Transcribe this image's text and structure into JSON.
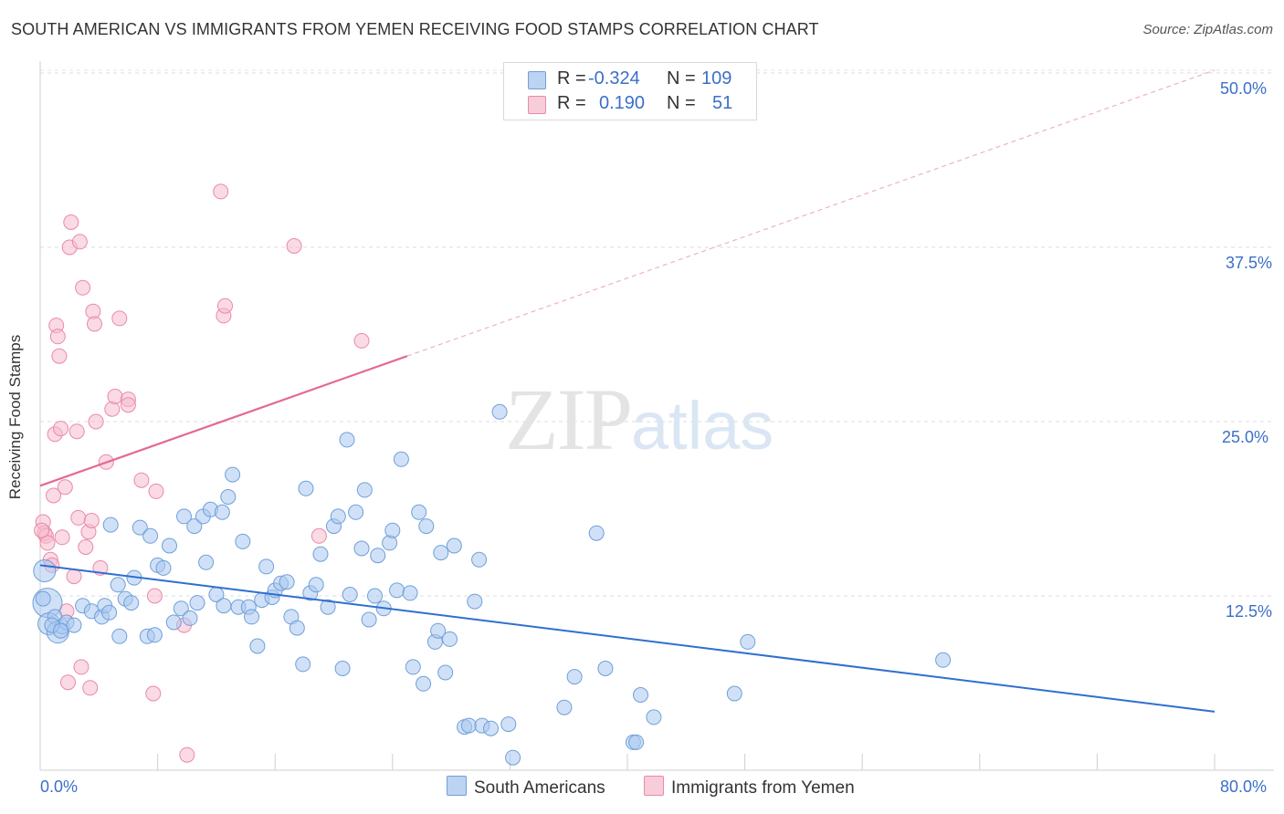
{
  "title": "SOUTH AMERICAN VS IMMIGRANTS FROM YEMEN RECEIVING FOOD STAMPS CORRELATION CHART",
  "source": "Source: ZipAtlas.com",
  "watermark": {
    "zip": "ZIP",
    "atlas": "atlas"
  },
  "legend_top": {
    "rows": [
      {
        "r_label": "R =",
        "r_value": "-0.324",
        "n_label": "N =",
        "n_value": "109"
      },
      {
        "r_label": "R =",
        "r_value": "0.190",
        "n_label": "N =",
        "n_value": "51"
      }
    ]
  },
  "legend_bottom": [
    "South Americans",
    "Immigrants from Yemen"
  ],
  "axis": {
    "ylabel": "Receiving Food Stamps",
    "x_min_label": "0.0%",
    "x_max_label": "80.0%",
    "y_ticks": [
      "12.5%",
      "25.0%",
      "37.5%",
      "50.0%"
    ]
  },
  "colors": {
    "blue_fill": "#a9c8f0",
    "blue_stroke": "#6f9fd8",
    "blue_line": "#2f6fd0",
    "pink_fill": "#f6bccd",
    "pink_stroke": "#e98aa8",
    "pink_line": "#e46a93",
    "tick_text": "#3b6fc9"
  },
  "chart_data": {
    "type": "scatter",
    "xlim": [
      0,
      80
    ],
    "ylim": [
      0,
      52
    ],
    "y_ticks": [
      12.5,
      25,
      37.5,
      50
    ],
    "grid": true,
    "series": [
      {
        "name": "South Americans",
        "r": -0.324,
        "n": 109,
        "trend": {
          "x": [
            0,
            80
          ],
          "y": [
            14.7,
            4.2
          ]
        },
        "points": [
          [
            0.3,
            14.3
          ],
          [
            0.5,
            12.0
          ],
          [
            0.6,
            10.5
          ],
          [
            1.0,
            11.0
          ],
          [
            1.2,
            9.9
          ],
          [
            1.5,
            10.3
          ],
          [
            1.8,
            10.6
          ],
          [
            2.3,
            10.4
          ],
          [
            2.9,
            11.8
          ],
          [
            3.5,
            11.4
          ],
          [
            4.2,
            11.0
          ],
          [
            4.4,
            11.8
          ],
          [
            4.7,
            11.3
          ],
          [
            4.8,
            17.6
          ],
          [
            5.3,
            13.3
          ],
          [
            5.4,
            9.6
          ],
          [
            5.8,
            12.3
          ],
          [
            6.2,
            12.0
          ],
          [
            6.4,
            13.8
          ],
          [
            6.8,
            17.4
          ],
          [
            7.3,
            9.6
          ],
          [
            7.5,
            16.8
          ],
          [
            7.8,
            9.7
          ],
          [
            8.0,
            14.7
          ],
          [
            8.4,
            14.5
          ],
          [
            8.8,
            16.1
          ],
          [
            9.1,
            10.6
          ],
          [
            9.6,
            11.6
          ],
          [
            9.8,
            18.2
          ],
          [
            10.2,
            10.9
          ],
          [
            10.5,
            17.5
          ],
          [
            10.7,
            12.0
          ],
          [
            11.1,
            18.2
          ],
          [
            11.3,
            14.9
          ],
          [
            11.6,
            18.7
          ],
          [
            12.0,
            12.6
          ],
          [
            12.4,
            18.5
          ],
          [
            12.5,
            11.8
          ],
          [
            12.8,
            19.6
          ],
          [
            13.1,
            21.2
          ],
          [
            13.5,
            11.7
          ],
          [
            13.8,
            16.4
          ],
          [
            14.2,
            11.7
          ],
          [
            14.4,
            11.0
          ],
          [
            14.8,
            8.9
          ],
          [
            15.1,
            12.2
          ],
          [
            15.4,
            14.6
          ],
          [
            15.8,
            12.4
          ],
          [
            16.0,
            12.9
          ],
          [
            16.4,
            13.4
          ],
          [
            16.8,
            13.5
          ],
          [
            17.1,
            11.0
          ],
          [
            17.5,
            10.2
          ],
          [
            17.9,
            7.6
          ],
          [
            18.1,
            20.2
          ],
          [
            18.4,
            12.7
          ],
          [
            18.8,
            13.3
          ],
          [
            19.1,
            15.5
          ],
          [
            19.6,
            11.7
          ],
          [
            20.0,
            17.5
          ],
          [
            20.3,
            18.2
          ],
          [
            20.6,
            7.3
          ],
          [
            20.9,
            23.7
          ],
          [
            21.1,
            12.6
          ],
          [
            21.5,
            18.5
          ],
          [
            21.9,
            15.9
          ],
          [
            22.1,
            20.1
          ],
          [
            22.4,
            10.8
          ],
          [
            22.8,
            12.5
          ],
          [
            23.0,
            15.4
          ],
          [
            23.4,
            11.6
          ],
          [
            23.8,
            16.3
          ],
          [
            24.0,
            17.2
          ],
          [
            24.3,
            12.9
          ],
          [
            24.6,
            22.3
          ],
          [
            25.2,
            12.7
          ],
          [
            25.4,
            7.4
          ],
          [
            25.8,
            18.5
          ],
          [
            26.1,
            6.2
          ],
          [
            26.3,
            17.5
          ],
          [
            26.9,
            9.2
          ],
          [
            27.1,
            10.0
          ],
          [
            27.3,
            15.6
          ],
          [
            27.6,
            7.0
          ],
          [
            27.9,
            9.4
          ],
          [
            28.2,
            16.1
          ],
          [
            28.9,
            3.1
          ],
          [
            29.2,
            3.2
          ],
          [
            29.6,
            12.1
          ],
          [
            29.9,
            15.1
          ],
          [
            30.1,
            3.2
          ],
          [
            30.7,
            3.0
          ],
          [
            31.3,
            25.7
          ],
          [
            31.9,
            3.3
          ],
          [
            32.2,
            0.9
          ],
          [
            35.7,
            4.5
          ],
          [
            36.4,
            6.7
          ],
          [
            37.9,
            17.0
          ],
          [
            38.5,
            7.3
          ],
          [
            40.9,
            5.4
          ],
          [
            40.4,
            2.0
          ],
          [
            40.6,
            2.0
          ],
          [
            41.8,
            3.8
          ],
          [
            47.3,
            5.5
          ],
          [
            48.2,
            9.2
          ],
          [
            61.5,
            7.9
          ],
          [
            0.2,
            12.3
          ],
          [
            0.8,
            10.4
          ],
          [
            1.4,
            10.0
          ]
        ]
      },
      {
        "name": "Immigrants from Yemen",
        "r": 0.19,
        "n": 51,
        "trend": {
          "x": [
            0,
            25
          ],
          "y": [
            20.4,
            29.7
          ]
        },
        "trend_dashed": {
          "x": [
            25,
            80
          ],
          "y": [
            29.7,
            50.2
          ]
        },
        "points": [
          [
            0.2,
            17.8
          ],
          [
            0.3,
            17.0
          ],
          [
            0.4,
            16.8
          ],
          [
            0.5,
            16.3
          ],
          [
            0.7,
            15.1
          ],
          [
            0.8,
            14.7
          ],
          [
            0.9,
            19.7
          ],
          [
            1.0,
            24.1
          ],
          [
            1.1,
            31.9
          ],
          [
            1.2,
            31.1
          ],
          [
            1.3,
            29.7
          ],
          [
            1.4,
            24.5
          ],
          [
            1.5,
            16.7
          ],
          [
            1.7,
            20.3
          ],
          [
            1.8,
            11.4
          ],
          [
            1.9,
            6.3
          ],
          [
            2.0,
            37.5
          ],
          [
            2.1,
            39.3
          ],
          [
            2.3,
            13.9
          ],
          [
            2.5,
            24.3
          ],
          [
            2.6,
            18.1
          ],
          [
            2.7,
            37.9
          ],
          [
            2.8,
            7.4
          ],
          [
            2.9,
            34.6
          ],
          [
            3.1,
            16.0
          ],
          [
            3.3,
            17.1
          ],
          [
            3.4,
            5.9
          ],
          [
            3.5,
            17.9
          ],
          [
            3.6,
            32.9
          ],
          [
            3.7,
            32.0
          ],
          [
            3.8,
            25.0
          ],
          [
            4.1,
            14.5
          ],
          [
            4.5,
            22.1
          ],
          [
            4.9,
            25.9
          ],
          [
            5.1,
            26.8
          ],
          [
            5.4,
            32.4
          ],
          [
            6.0,
            26.6
          ],
          [
            6.0,
            26.2
          ],
          [
            6.9,
            20.8
          ],
          [
            7.7,
            5.5
          ],
          [
            7.8,
            12.5
          ],
          [
            7.9,
            20.0
          ],
          [
            9.8,
            10.4
          ],
          [
            10.0,
            1.1
          ],
          [
            12.3,
            41.5
          ],
          [
            12.5,
            32.6
          ],
          [
            12.6,
            33.3
          ],
          [
            17.3,
            37.6
          ],
          [
            19.0,
            16.8
          ],
          [
            21.9,
            30.8
          ],
          [
            0.1,
            17.2
          ]
        ]
      }
    ]
  }
}
